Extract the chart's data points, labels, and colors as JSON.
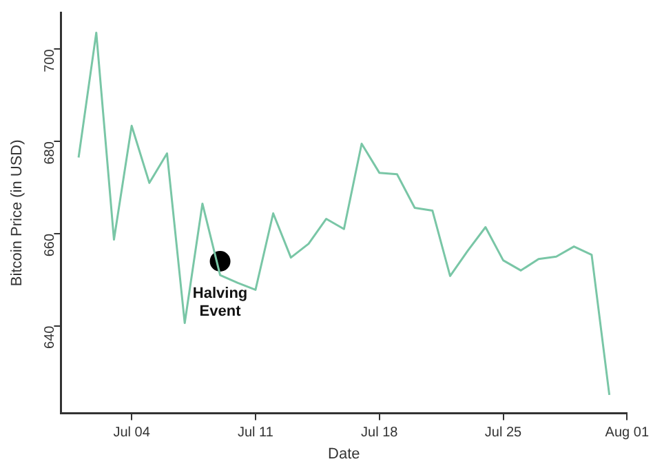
{
  "chart_data": {
    "type": "line",
    "xlabel": "Date",
    "ylabel": "Bitcoin Price (in USD)",
    "x": [
      "--07-01",
      "--07-02",
      "--07-03",
      "--07-04",
      "--07-05",
      "--07-06",
      "--07-07",
      "--07-08",
      "--07-09",
      "--07-10",
      "--07-11",
      "--07-12",
      "--07-13",
      "--07-14",
      "--07-15",
      "--07-16",
      "--07-17",
      "--07-18",
      "--07-19",
      "--07-20",
      "--07-21",
      "--07-22",
      "--07-23",
      "--07-24",
      "--07-25",
      "--07-26",
      "--07-27",
      "--07-28",
      "--07-29",
      "--07-30",
      "--07-31"
    ],
    "series": [
      {
        "color": "#79c6a6",
        "values": [
          676.5,
          703.6,
          658.7,
          683.4,
          671,
          677.4,
          640.6,
          666.5,
          651,
          649.3,
          647.8,
          664.4,
          654.8,
          657.8,
          663.2,
          661,
          679.5,
          673.2,
          672.9,
          665.6,
          665,
          650.8,
          656.3,
          661.4,
          654.2,
          652,
          654.5,
          655,
          657.2,
          655.4,
          625
        ]
      },
      {
        "type": "scatter",
        "marker": "circle",
        "color": "#000000",
        "x": [
          "--07-09"
        ],
        "values": [
          654
        ]
      }
    ],
    "annotations": [
      {
        "text": "Halving Event",
        "x": "--07-09",
        "y": 654
      }
    ],
    "xlim": [
      "--06-30",
      "--08-01"
    ],
    "xticks": [
      {
        "value": "--07-04",
        "label": "Jul 04"
      },
      {
        "value": "--07-11",
        "label": "Jul 11"
      },
      {
        "value": "--07-18",
        "label": "Jul 18"
      },
      {
        "value": "--07-25",
        "label": "Jul 25"
      },
      {
        "value": "--08-01",
        "label": "Aug 01"
      }
    ],
    "ylim": [
      621,
      708
    ],
    "yticks": [
      640,
      660,
      680,
      700
    ],
    "grid": false,
    "legend": false,
    "marker": "none",
    "line_style": "solid"
  }
}
